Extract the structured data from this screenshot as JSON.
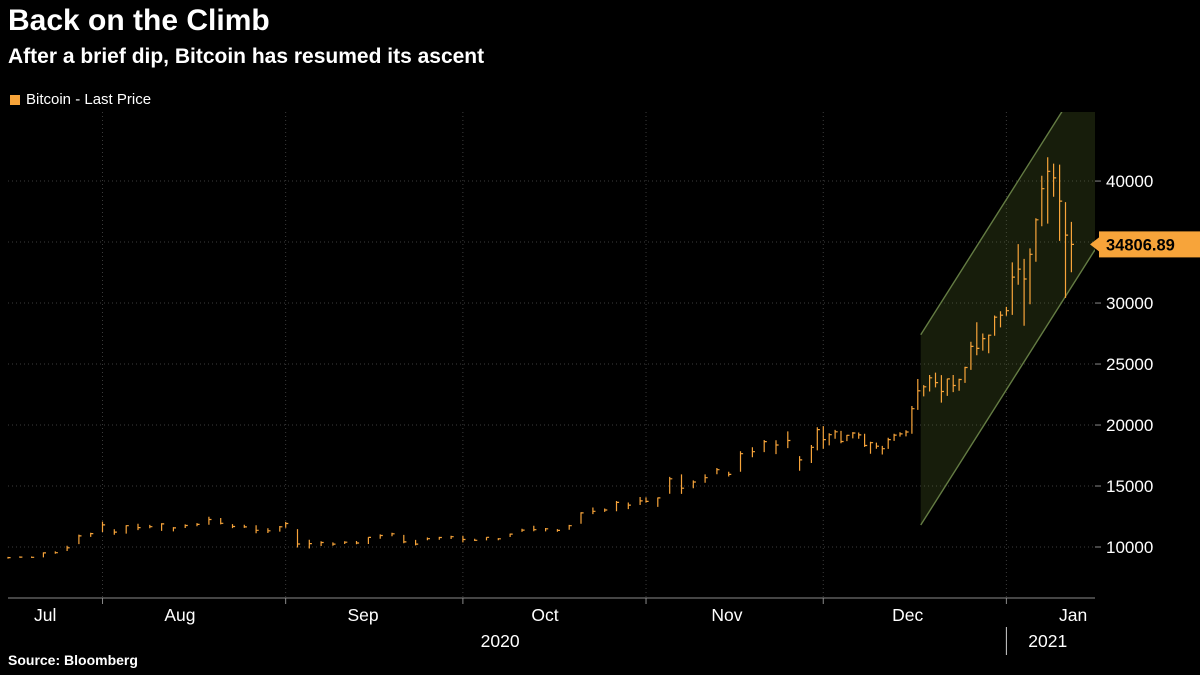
{
  "title": "Back on the Climb",
  "subtitle": "After a brief dip, Bitcoin has resumed its ascent",
  "legend": {
    "label": "Bitcoin - Last Price",
    "swatch_color": "#f7a43a"
  },
  "source": "Source: Bloomberg",
  "last_price_badge": {
    "value": "34806.89",
    "bg": "#f7a43a",
    "text_color": "#000000"
  },
  "colors": {
    "background": "#000000",
    "price_line": "#f7a43a",
    "grid": "#3c3c3c",
    "axis": "#8a8a8a",
    "tick_label": "#ffffff",
    "channel_stroke": "#647c43",
    "channel_fill": "rgba(90,115,45,0.25)",
    "year_divider": "#cfcfcf"
  },
  "chart_data": {
    "type": "hlc_bar",
    "series_name": "Bitcoin - Last Price",
    "title": "Back on the Climb",
    "subtitle": "After a brief dip, Bitcoin has resumed its ascent",
    "start_date": "2020-07-16",
    "x_unit": "days_since_start",
    "x_domain_days": [
      0,
      184
    ],
    "y_domain": [
      5820,
      45660
    ],
    "y_ticks": [
      10000,
      15000,
      20000,
      25000,
      30000,
      35000,
      40000
    ],
    "grid": "dotted",
    "legend_position": "top-left",
    "last_price": 34806.89,
    "x_axis": {
      "month_boundaries_days": [
        16,
        47,
        77,
        108,
        138,
        169
      ],
      "month_labels": [
        {
          "label": "Jul",
          "day": 6.3
        },
        {
          "label": "Aug",
          "day": 29.1
        },
        {
          "label": "Sep",
          "day": 60.1
        },
        {
          "label": "Oct",
          "day": 90.9
        },
        {
          "label": "Nov",
          "day": 121.7
        },
        {
          "label": "Dec",
          "day": 152.3
        },
        {
          "label": "Jan",
          "day": 180.3
        }
      ],
      "year_labels": [
        {
          "label": "2020",
          "day": 83.3
        },
        {
          "label": "2021",
          "day": 176.0
        }
      ],
      "year_divider_day": 169
    },
    "channel": {
      "start_day": 154.5,
      "end_day": 184,
      "lower_price_at_start": 11800,
      "upper_price_at_start": 27400,
      "slope_price_per_day": 765
    },
    "bars_format": [
      "day_offset",
      "low",
      "high",
      "close"
    ],
    "bars": [
      [
        0,
        9050,
        9190,
        9133
      ],
      [
        2,
        9120,
        9230,
        9170
      ],
      [
        4,
        9110,
        9220,
        9160
      ],
      [
        6,
        9150,
        9560,
        9520
      ],
      [
        8,
        9440,
        9640,
        9537
      ],
      [
        10,
        9670,
        10110,
        9933
      ],
      [
        12,
        10240,
        11020,
        10907
      ],
      [
        14,
        10830,
        11170,
        11100
      ],
      [
        16,
        11230,
        12080,
        11810
      ],
      [
        18,
        11010,
        11460,
        11219
      ],
      [
        20,
        11100,
        11790,
        11744
      ],
      [
        22,
        11390,
        11900,
        11594
      ],
      [
        24,
        11530,
        11810,
        11665
      ],
      [
        26,
        11320,
        11950,
        11892
      ],
      [
        28,
        11280,
        11630,
        11564
      ],
      [
        30,
        11560,
        11850,
        11760
      ],
      [
        32,
        11700,
        11960,
        11852
      ],
      [
        34,
        11830,
        12480,
        12254
      ],
      [
        36,
        11850,
        12380,
        11944
      ],
      [
        38,
        11550,
        11880,
        11678
      ],
      [
        40,
        11570,
        11820,
        11649
      ],
      [
        42,
        11130,
        11790,
        11366
      ],
      [
        44,
        11150,
        11540,
        11327
      ],
      [
        46,
        11260,
        11720,
        11655
      ],
      [
        47,
        11580,
        12060,
        11924
      ],
      [
        49,
        9960,
        11470,
        10245
      ],
      [
        51,
        9880,
        10590,
        10280
      ],
      [
        53,
        10080,
        10480,
        10369
      ],
      [
        55,
        10110,
        10380,
        10242
      ],
      [
        57,
        10250,
        10470,
        10396
      ],
      [
        59,
        10230,
        10490,
        10332
      ],
      [
        61,
        10250,
        10800,
        10784
      ],
      [
        63,
        10680,
        11030,
        10942
      ],
      [
        65,
        10880,
        11170,
        11081
      ],
      [
        67,
        10310,
        10990,
        10417
      ],
      [
        69,
        10130,
        10580,
        10241
      ],
      [
        71,
        10560,
        10780,
        10685
      ],
      [
        73,
        10590,
        10830,
        10776
      ],
      [
        75,
        10660,
        10920,
        10842
      ],
      [
        77,
        10380,
        10920,
        10619
      ],
      [
        79,
        10490,
        10680,
        10551
      ],
      [
        81,
        10540,
        10800,
        10796
      ],
      [
        83,
        10550,
        10730,
        10672
      ],
      [
        85,
        10820,
        11100,
        11058
      ],
      [
        87,
        11240,
        11490,
        11384
      ],
      [
        89,
        11290,
        11740,
        11419
      ],
      [
        91,
        11280,
        11560,
        11495
      ],
      [
        93,
        11250,
        11470,
        11360
      ],
      [
        95,
        11420,
        11810,
        11745
      ],
      [
        97,
        11910,
        12850,
        12796
      ],
      [
        99,
        12700,
        13240,
        12928
      ],
      [
        101,
        12880,
        13160,
        13031
      ],
      [
        103,
        12930,
        13770,
        13654
      ],
      [
        105,
        13110,
        13650,
        13437
      ],
      [
        107,
        13440,
        14100,
        13781
      ],
      [
        108,
        13640,
        14070,
        13737
      ],
      [
        110,
        13290,
        14060,
        14023
      ],
      [
        112,
        14370,
        15750,
        15590
      ],
      [
        114,
        14350,
        15950,
        14818
      ],
      [
        116,
        14810,
        15460,
        15328
      ],
      [
        118,
        15270,
        15950,
        15684
      ],
      [
        120,
        15960,
        16480,
        16339
      ],
      [
        122,
        15780,
        16170,
        15955
      ],
      [
        124,
        16170,
        17850,
        17645
      ],
      [
        126,
        17350,
        18170,
        17817
      ],
      [
        128,
        17780,
        18770,
        18642
      ],
      [
        130,
        17620,
        18750,
        18365
      ],
      [
        132,
        18110,
        19480,
        18729
      ],
      [
        134,
        16250,
        17450,
        17138
      ],
      [
        136,
        16890,
        18360,
        18177
      ],
      [
        137,
        17920,
        19820,
        19625
      ],
      [
        138,
        18050,
        19910,
        18802
      ],
      [
        139,
        18330,
        19320,
        19205
      ],
      [
        140,
        18880,
        19600,
        19446
      ],
      [
        141,
        18500,
        19520,
        18650
      ],
      [
        142,
        18680,
        19190,
        19154
      ],
      [
        143,
        18900,
        19420,
        19345
      ],
      [
        144,
        18870,
        19390,
        19191
      ],
      [
        145,
        18210,
        19290,
        18321
      ],
      [
        146,
        17650,
        18630,
        18554
      ],
      [
        147,
        18050,
        18560,
        18264
      ],
      [
        148,
        17580,
        18290,
        18058
      ],
      [
        149,
        18040,
        18950,
        18808
      ],
      [
        150,
        18700,
        19280,
        19175
      ],
      [
        151,
        19050,
        19400,
        19273
      ],
      [
        152,
        19070,
        19570,
        19426
      ],
      [
        153,
        19280,
        21560,
        21335
      ],
      [
        154,
        21240,
        23770,
        22805
      ],
      [
        155,
        22350,
        23270,
        23137
      ],
      [
        156,
        22750,
        24100,
        23869
      ],
      [
        157,
        23080,
        24300,
        23477
      ],
      [
        158,
        21840,
        24090,
        22745
      ],
      [
        159,
        22390,
        23800,
        23783
      ],
      [
        160,
        22700,
        24100,
        23241
      ],
      [
        161,
        22810,
        23790,
        23735
      ],
      [
        162,
        23450,
        24780,
        24712
      ],
      [
        163,
        24520,
        26820,
        26443
      ],
      [
        164,
        25720,
        28420,
        26281
      ],
      [
        165,
        26100,
        27500,
        27081
      ],
      [
        166,
        25880,
        27410,
        27362
      ],
      [
        167,
        27320,
        28980,
        28841
      ],
      [
        168,
        28000,
        29320,
        29001
      ],
      [
        169,
        28950,
        29680,
        29374
      ],
      [
        170,
        29030,
        33330,
        32127
      ],
      [
        171,
        31500,
        34830,
        32782
      ],
      [
        172,
        28130,
        33620,
        31971
      ],
      [
        173,
        29900,
        34480,
        33992
      ],
      [
        174,
        33390,
        36950,
        36824
      ],
      [
        175,
        36300,
        40430,
        39371
      ],
      [
        176,
        36510,
        41950,
        40797
      ],
      [
        177,
        38720,
        41430,
        40254
      ],
      [
        178,
        35090,
        41350,
        38356
      ],
      [
        179,
        30420,
        38270,
        35566
      ],
      [
        180,
        32530,
        36650,
        34806.89
      ]
    ]
  }
}
